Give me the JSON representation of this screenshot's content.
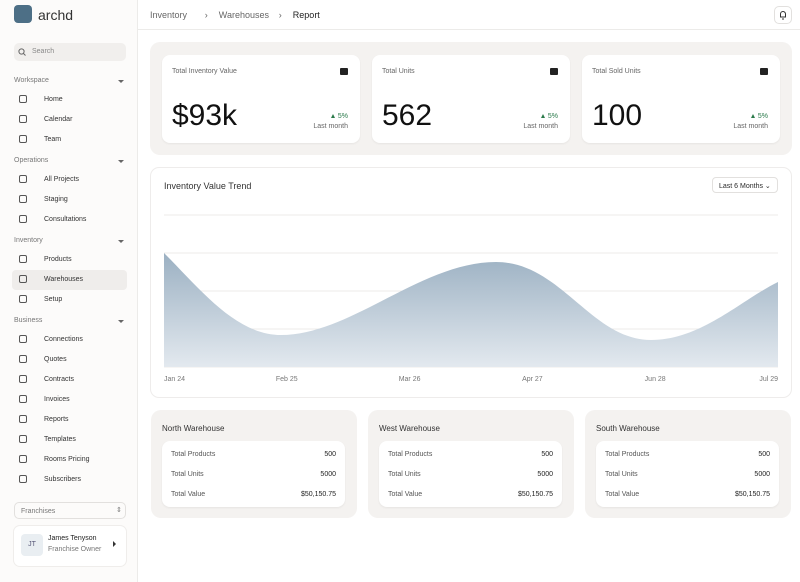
{
  "brand": "archd",
  "search_placeholder": "Search",
  "nav": [
    {
      "title": "Workspace",
      "items": [
        "Home",
        "Calendar",
        "Team"
      ]
    },
    {
      "title": "Operations",
      "items": [
        "All Projects",
        "Staging",
        "Consultations"
      ]
    },
    {
      "title": "Inventory",
      "items": [
        "Products",
        "Warehouses",
        "Setup"
      ]
    },
    {
      "title": "Business",
      "items": [
        "Connections",
        "Quotes",
        "Contracts",
        "Invoices",
        "Reports",
        "Templates",
        "Rooms Pricing",
        "Subscribers"
      ]
    }
  ],
  "franchise_select": "Franchises",
  "user": {
    "initials": "JT",
    "name": "James Tenyson",
    "role": "Franchise Owner"
  },
  "breadcrumb": [
    "Inventory",
    "Warehouses",
    "Report"
  ],
  "stats": [
    {
      "label": "Total Inventory Value",
      "value": "$93k",
      "change": "5%",
      "period": "Last month"
    },
    {
      "label": "Total Units",
      "value": "562",
      "change": "5%",
      "period": "Last month"
    },
    {
      "label": "Total Sold Units",
      "value": "100",
      "change": "5%",
      "period": "Last month"
    }
  ],
  "trend": {
    "title": "Inventory Value Trend",
    "range": "Last 6 Months",
    "x_labels": [
      "Jan 24",
      "Feb 25",
      "Mar 26",
      "Apr 27",
      "Jun 28",
      "Jul 29"
    ]
  },
  "warehouses": [
    {
      "name": "North Warehouse",
      "rows": [
        [
          "Total Products",
          "500"
        ],
        [
          "Total Units",
          "5000"
        ],
        [
          "Total Value",
          "$50,150.75"
        ]
      ]
    },
    {
      "name": "West Warehouse",
      "rows": [
        [
          "Total Products",
          "500"
        ],
        [
          "Total Units",
          "5000"
        ],
        [
          "Total Value",
          "$50,150.75"
        ]
      ]
    },
    {
      "name": "South Warehouse",
      "rows": [
        [
          "Total Products",
          "500"
        ],
        [
          "Total Units",
          "5000"
        ],
        [
          "Total Value",
          "$50,150.75"
        ]
      ]
    }
  ]
}
